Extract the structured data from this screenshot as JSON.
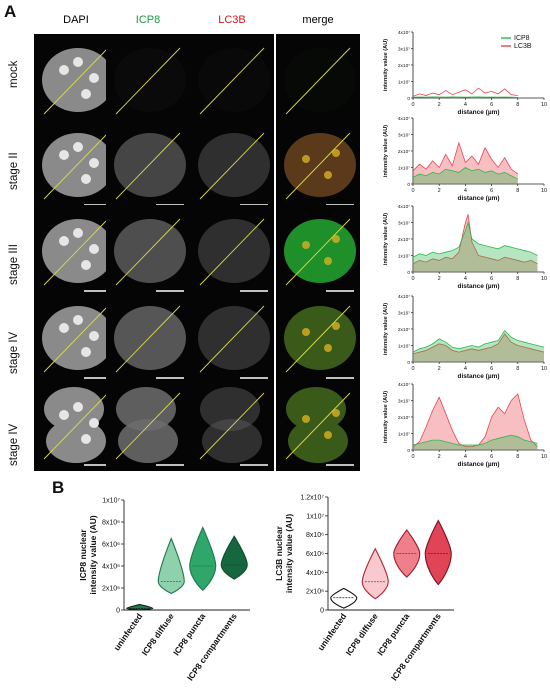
{
  "figure": {
    "panel_a_letter": "A",
    "panel_b_letter": "B",
    "columns": [
      "DAPI",
      "ICP8",
      "LC3B",
      "merge"
    ],
    "column_colors": [
      "#111111",
      "#1a9a3c",
      "#d4141b",
      "#111111"
    ],
    "rows": [
      "mock",
      "stage II",
      "stage III",
      "stage IV",
      "stage IV"
    ]
  },
  "line_profiles": {
    "ylabel": "intensity value (AU)",
    "xlabel": "distance (µm)",
    "y_ticks": [
      "0",
      "1x10⁷",
      "2x10⁷",
      "3x10⁷",
      "4x10⁷"
    ],
    "x_ticks": [
      "0",
      "2",
      "4",
      "6",
      "8",
      "10"
    ],
    "legend": [
      {
        "name": "ICP8",
        "color": "#2db84d"
      },
      {
        "name": "LC3B",
        "color": "#e8474f"
      }
    ]
  },
  "chart_data": [
    {
      "type": "line",
      "panel": "mock",
      "x_unit": "µm",
      "xlim": [
        0,
        10
      ],
      "ylim": [
        0,
        40000000
      ],
      "series": [
        {
          "name": "ICP8",
          "x": [
            0,
            0.5,
            1,
            1.5,
            2,
            2.5,
            3,
            3.5,
            4,
            4.5,
            5,
            5.5,
            6,
            6.5,
            7,
            7.5,
            8
          ],
          "y": [
            500000,
            600000,
            500000,
            700000,
            600000,
            500000,
            700000,
            600000,
            500000,
            600000,
            700000,
            500000,
            600000,
            500000,
            600000,
            500000,
            400000
          ]
        },
        {
          "name": "LC3B",
          "x": [
            0,
            0.5,
            1,
            1.5,
            2,
            2.5,
            3,
            3.5,
            4,
            4.5,
            5,
            5.5,
            6,
            6.5,
            7,
            7.5,
            8
          ],
          "y": [
            1000000,
            2500000,
            1500000,
            3000000,
            2000000,
            4500000,
            2000000,
            3500000,
            5000000,
            2500000,
            6000000,
            3000000,
            4000000,
            2500000,
            5500000,
            2000000,
            1500000
          ]
        }
      ]
    },
    {
      "type": "area",
      "panel": "stage II",
      "x_unit": "µm",
      "xlim": [
        0,
        10
      ],
      "ylim": [
        0,
        40000000
      ],
      "series": [
        {
          "name": "ICP8",
          "x": [
            0,
            0.5,
            1,
            1.5,
            2,
            2.5,
            3,
            3.5,
            4,
            4.5,
            5,
            5.5,
            6,
            6.5,
            7,
            7.5,
            8
          ],
          "y": [
            4000000,
            6000000,
            5000000,
            7000000,
            6000000,
            9000000,
            8000000,
            7000000,
            10000000,
            8000000,
            9000000,
            7000000,
            8000000,
            6000000,
            7000000,
            5000000,
            3000000
          ]
        },
        {
          "name": "LC3B",
          "x": [
            0,
            0.5,
            1,
            1.5,
            2,
            2.5,
            3,
            3.5,
            4,
            4.5,
            5,
            5.5,
            6,
            6.5,
            7,
            7.5,
            8
          ],
          "y": [
            8000000,
            12000000,
            9000000,
            14000000,
            10000000,
            18000000,
            11000000,
            25000000,
            13000000,
            17000000,
            12000000,
            22000000,
            15000000,
            10000000,
            16000000,
            9000000,
            6000000
          ]
        }
      ]
    },
    {
      "type": "area",
      "panel": "stage III",
      "x_unit": "µm",
      "xlim": [
        0,
        10
      ],
      "ylim": [
        0,
        40000000
      ],
      "series": [
        {
          "name": "ICP8",
          "x": [
            0,
            0.5,
            1,
            1.5,
            2,
            2.5,
            3,
            3.5,
            4,
            4.2,
            4.5,
            5,
            5.5,
            6,
            6.5,
            7,
            7.5,
            8,
            8.5,
            9,
            9.5
          ],
          "y": [
            9000000,
            11000000,
            10000000,
            12000000,
            11000000,
            12000000,
            13000000,
            15000000,
            25000000,
            30000000,
            20000000,
            17000000,
            16000000,
            15000000,
            14000000,
            16000000,
            15000000,
            14000000,
            13000000,
            12000000,
            10000000
          ]
        },
        {
          "name": "LC3B",
          "x": [
            0,
            0.5,
            1,
            1.5,
            2,
            2.5,
            3,
            3.5,
            4,
            4.2,
            4.5,
            5,
            5.5,
            6,
            6.5,
            7,
            7.5,
            8,
            8.5,
            9,
            9.5
          ],
          "y": [
            5000000,
            7000000,
            6000000,
            8000000,
            7000000,
            9000000,
            8000000,
            12000000,
            30000000,
            35000000,
            18000000,
            10000000,
            9000000,
            8000000,
            7000000,
            9000000,
            8000000,
            7000000,
            6000000,
            7000000,
            5000000
          ]
        }
      ]
    },
    {
      "type": "area",
      "panel": "stage IV (1)",
      "x_unit": "µm",
      "xlim": [
        0,
        10
      ],
      "ylim": [
        0,
        40000000
      ],
      "series": [
        {
          "name": "ICP8",
          "x": [
            0,
            0.5,
            1,
            1.5,
            2,
            2.5,
            3,
            3.5,
            4,
            4.5,
            5,
            5.5,
            6,
            6.5,
            7,
            7.5,
            8,
            8.5,
            9,
            9.5,
            10
          ],
          "y": [
            6000000,
            8000000,
            9000000,
            11000000,
            14000000,
            12000000,
            9000000,
            8000000,
            9000000,
            10000000,
            9000000,
            11000000,
            12000000,
            13000000,
            19000000,
            15000000,
            13000000,
            12000000,
            11000000,
            10000000,
            9000000
          ]
        },
        {
          "name": "LC3B",
          "x": [
            0,
            0.5,
            1,
            1.5,
            2,
            2.5,
            3,
            3.5,
            4,
            4.5,
            5,
            5.5,
            6,
            6.5,
            7,
            7.5,
            8,
            8.5,
            9,
            9.5,
            10
          ],
          "y": [
            5000000,
            6000000,
            7000000,
            9000000,
            11000000,
            10000000,
            7000000,
            6000000,
            7000000,
            8000000,
            7000000,
            8000000,
            9000000,
            11000000,
            17000000,
            12000000,
            10000000,
            9000000,
            8000000,
            7000000,
            6000000
          ]
        }
      ]
    },
    {
      "type": "area",
      "panel": "stage IV (2)",
      "x_unit": "µm",
      "xlim": [
        0,
        10
      ],
      "ylim": [
        0,
        40000000
      ],
      "series": [
        {
          "name": "ICP8",
          "x": [
            0,
            0.5,
            1,
            1.5,
            2,
            2.5,
            3,
            3.5,
            4,
            4.5,
            5,
            5.5,
            6,
            6.5,
            7,
            7.5,
            8,
            8.5,
            9,
            9.5
          ],
          "y": [
            3000000,
            4000000,
            5000000,
            6000000,
            6000000,
            5000000,
            4000000,
            3000000,
            3000000,
            3000000,
            3000000,
            4000000,
            6000000,
            7000000,
            8000000,
            9000000,
            8000000,
            6000000,
            5000000,
            4000000
          ]
        },
        {
          "name": "LC3B",
          "x": [
            0,
            0.5,
            1,
            1.5,
            2,
            2.5,
            3,
            3.5,
            4,
            4.5,
            5,
            5.5,
            6,
            6.5,
            7,
            7.5,
            8,
            8.5,
            9,
            9.5
          ],
          "y": [
            2000000,
            5000000,
            14000000,
            24000000,
            32000000,
            22000000,
            12000000,
            4000000,
            2000000,
            2000000,
            3000000,
            8000000,
            20000000,
            26000000,
            22000000,
            30000000,
            34000000,
            18000000,
            6000000,
            2000000
          ]
        }
      ]
    },
    {
      "type": "violin",
      "panel": "B-left",
      "ylabel": "ICP8 nuclear intensity value (AU)",
      "y_ticks": [
        "0",
        "2x10⁶",
        "4x10⁶",
        "6x10⁶",
        "8x10⁶",
        "1x10⁷"
      ],
      "ylim": [
        0,
        10000000
      ],
      "categories": [
        "uninfected",
        "ICP8 diffuse",
        "ICP8 puncta",
        "ICP8 compartments"
      ],
      "series": [
        {
          "name": "uninfected",
          "min": 0,
          "max": 500000,
          "median": 150000,
          "color": "#1f7a4d"
        },
        {
          "name": "ICP8 diffuse",
          "min": 1500000,
          "max": 6500000,
          "median": 2600000,
          "color": "#8fd1ad"
        },
        {
          "name": "ICP8 puncta",
          "min": 1800000,
          "max": 7500000,
          "median": 4000000,
          "color": "#2fa66a"
        },
        {
          "name": "ICP8 compartments",
          "min": 2800000,
          "max": 6700000,
          "median": 4100000,
          "color": "#16663f"
        }
      ]
    },
    {
      "type": "violin",
      "panel": "B-right",
      "ylabel": "LC3B nuclear intensity value (AU)",
      "y_ticks": [
        "0",
        "2x10⁶",
        "4x10⁶",
        "6x10⁶",
        "8x10⁶",
        "1x10⁷",
        "1.2x10⁷"
      ],
      "ylim": [
        0,
        12000000
      ],
      "categories": [
        "uninfected",
        "ICP8 diffuse",
        "ICP8 puncta",
        "ICP8 compartments"
      ],
      "series": [
        {
          "name": "uninfected",
          "min": 200000,
          "max": 2300000,
          "median": 1300000,
          "color": "#ffffff"
        },
        {
          "name": "ICP8 diffuse",
          "min": 1200000,
          "max": 6500000,
          "median": 3000000,
          "color": "#f8c9cf"
        },
        {
          "name": "ICP8 puncta",
          "min": 3500000,
          "max": 8500000,
          "median": 6000000,
          "color": "#ef7f8a"
        },
        {
          "name": "ICP8 compartments",
          "min": 2700000,
          "max": 9500000,
          "median": 6000000,
          "color": "#e04456"
        }
      ]
    }
  ]
}
